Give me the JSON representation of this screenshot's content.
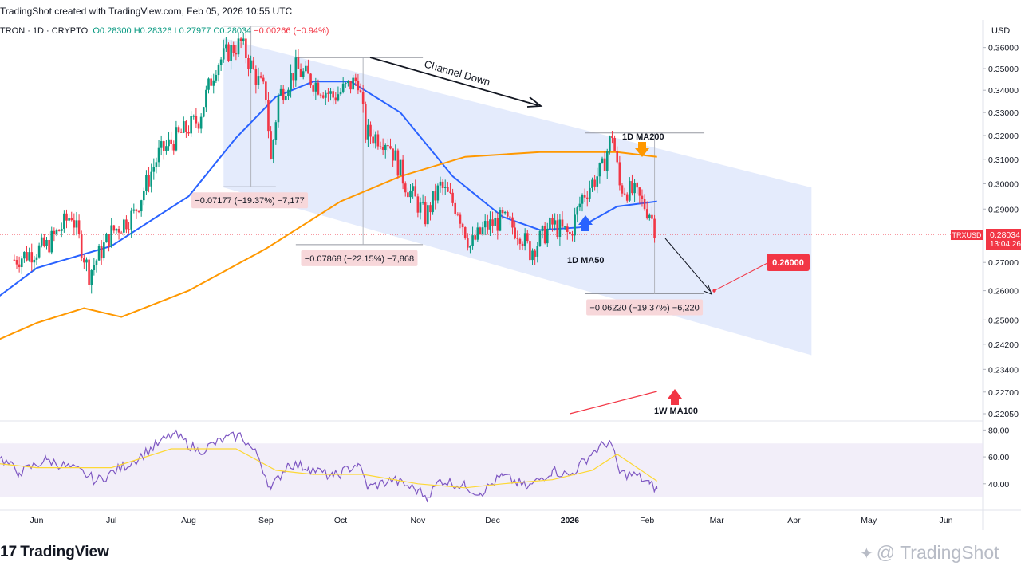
{
  "header": {
    "created_by": "TradingShot created with TradingView.com, Feb 05, 2026 10:55 UTC",
    "symbol": "TRON · 1D · CRYPTO",
    "open": "O0.28300",
    "high": "H0.28326",
    "low": "L0.27977",
    "close": "C0.28034",
    "change": "−0.00266 (−0.94%)"
  },
  "currency": "USD",
  "price_tag": {
    "ticker": "TRXUSD",
    "price": "0.28034",
    "countdown": "13:04:26"
  },
  "brand": {
    "left": "TradingView",
    "right": "@ TradingShot"
  },
  "colors": {
    "up": "#089981",
    "down": "#f23645",
    "ma50": "#2962ff",
    "ma200": "#ff9800",
    "channel": "#dbe4fb",
    "rsi": "#7e57c2",
    "rsi_ma": "#fdd835",
    "target": "#f23645"
  },
  "chart_data": [
    {
      "type": "candlestick",
      "title": "",
      "symbol": "TRXUSD",
      "y_axis_ticks": [
        "0.36000",
        "0.35000",
        "0.34000",
        "0.33000",
        "0.32000",
        "0.31000",
        "0.30000",
        "0.29000",
        "0.28000",
        "0.27000",
        "0.26000",
        "0.25000",
        "0.24200",
        "0.23400",
        "0.22700",
        "0.22050"
      ],
      "x_axis_ticks": [
        "Jun",
        "Jul",
        "Aug",
        "Sep",
        "Oct",
        "Nov",
        "Dec",
        "2026",
        "Feb",
        "Mar",
        "Apr",
        "May",
        "Jun"
      ],
      "ylim": [
        0.2205,
        0.3645
      ],
      "scale": "log",
      "grid": false,
      "price_anchors": [
        [
          "2025-05-23",
          0.271
        ],
        [
          "2025-06-05",
          0.276
        ],
        [
          "2025-06-15",
          0.288
        ],
        [
          "2025-06-22",
          0.266
        ],
        [
          "2025-07-01",
          0.281
        ],
        [
          "2025-07-10",
          0.288
        ],
        [
          "2025-07-20",
          0.312
        ],
        [
          "2025-07-28",
          0.32
        ],
        [
          "2025-08-05",
          0.327
        ],
        [
          "2025-08-12",
          0.352
        ],
        [
          "2025-08-17",
          0.358
        ],
        [
          "2025-08-22",
          0.362
        ],
        [
          "2025-08-28",
          0.346
        ],
        [
          "2025-09-01",
          0.338
        ],
        [
          "2025-09-03",
          0.309
        ],
        [
          "2025-09-06",
          0.337
        ],
        [
          "2025-09-13",
          0.35
        ],
        [
          "2025-09-20",
          0.344
        ],
        [
          "2025-09-28",
          0.337
        ],
        [
          "2025-10-08",
          0.345
        ],
        [
          "2025-10-11",
          0.321
        ],
        [
          "2025-10-20",
          0.318
        ],
        [
          "2025-10-27",
          0.3
        ],
        [
          "2025-11-04",
          0.287
        ],
        [
          "2025-11-10",
          0.299
        ],
        [
          "2025-11-17",
          0.29
        ],
        [
          "2025-11-22",
          0.276
        ],
        [
          "2025-11-28",
          0.283
        ],
        [
          "2025-12-05",
          0.286
        ],
        [
          "2025-12-12",
          0.281
        ],
        [
          "2025-12-16",
          0.274
        ],
        [
          "2025-12-25",
          0.284
        ],
        [
          "2026-01-01",
          0.28
        ],
        [
          "2026-01-06",
          0.295
        ],
        [
          "2026-01-14",
          0.306
        ],
        [
          "2026-01-18",
          0.321
        ],
        [
          "2026-01-21",
          0.299
        ],
        [
          "2026-01-27",
          0.296
        ],
        [
          "2026-02-02",
          0.289
        ],
        [
          "2026-02-05",
          0.2803
        ]
      ],
      "series": [
        {
          "name": "1D MA50",
          "points": [
            [
              "2025-05-01",
              0.248
            ],
            [
              "2025-06-01",
              0.268
            ],
            [
              "2025-07-01",
              0.276
            ],
            [
              "2025-08-01",
              0.295
            ],
            [
              "2025-08-20",
              0.319
            ],
            [
              "2025-09-05",
              0.337
            ],
            [
              "2025-09-20",
              0.344
            ],
            [
              "2025-10-05",
              0.344
            ],
            [
              "2025-10-25",
              0.33
            ],
            [
              "2025-11-15",
              0.303
            ],
            [
              "2025-12-05",
              0.287
            ],
            [
              "2025-12-20",
              0.282
            ],
            [
              "2026-01-05",
              0.283
            ],
            [
              "2026-01-20",
              0.291
            ],
            [
              "2026-02-05",
              0.293
            ]
          ]
        },
        {
          "name": "1D MA200",
          "points": [
            [
              "2025-05-01",
              0.238
            ],
            [
              "2025-06-01",
              0.249
            ],
            [
              "2025-06-20",
              0.254
            ],
            [
              "2025-07-05",
              0.251
            ],
            [
              "2025-08-01",
              0.26
            ],
            [
              "2025-09-01",
              0.275
            ],
            [
              "2025-10-01",
              0.293
            ],
            [
              "2025-10-25",
              0.303
            ],
            [
              "2025-11-20",
              0.311
            ],
            [
              "2025-12-20",
              0.313
            ],
            [
              "2026-01-20",
              0.313
            ],
            [
              "2026-02-05",
              0.311
            ]
          ]
        },
        {
          "name": "1W MA100",
          "points": [
            [
              "2026-01-01",
              0.2205
            ],
            [
              "2026-02-05",
              0.2272
            ]
          ]
        }
      ],
      "annotations": [
        {
          "text": "Channel Down"
        },
        {
          "text": "1D MA200"
        },
        {
          "text": "1D MA50"
        },
        {
          "text": "1W MA100"
        },
        {
          "text": "0.26000",
          "value": 0.26,
          "date": "2026-02-28"
        },
        {
          "text": "−0.07177 (−19.37%) −7,177",
          "from": 0.3705,
          "to": 0.2988
        },
        {
          "text": "−0.07868 (−22.15%) −7,868",
          "from": 0.3552,
          "to": 0.2765
        },
        {
          "text": "−0.06220 (−19.37%) −6,220",
          "from": 0.3211,
          "to": 0.2589
        }
      ],
      "channel": {
        "upper": [
          [
            "2025-08-15",
            0.3645
          ],
          [
            "2026-04-08",
            0.2985
          ]
        ],
        "lower": [
          [
            "2025-08-15",
            0.2985
          ],
          [
            "2026-04-08",
            0.2385
          ]
        ]
      }
    },
    {
      "type": "line",
      "title": "",
      "y_axis_ticks": [
        "80.00",
        "60.00",
        "40.00"
      ],
      "ylim": [
        28,
        82
      ],
      "band": [
        30,
        70
      ],
      "series": [
        {
          "name": "",
          "points": [
            [
              "2025-05-01",
              60
            ],
            [
              "2025-05-15",
              63
            ],
            [
              "2025-05-25",
              48
            ],
            [
              "2025-06-05",
              58
            ],
            [
              "2025-06-20",
              48
            ],
            [
              "2025-06-25",
              42
            ],
            [
              "2025-07-10",
              57
            ],
            [
              "2025-07-20",
              70
            ],
            [
              "2025-07-26",
              77
            ],
            [
              "2025-08-05",
              64
            ],
            [
              "2025-08-15",
              73
            ],
            [
              "2025-08-22",
              76
            ],
            [
              "2025-08-29",
              60
            ],
            [
              "2025-09-03",
              36
            ],
            [
              "2025-09-10",
              55
            ],
            [
              "2025-09-18",
              52
            ],
            [
              "2025-09-28",
              45
            ],
            [
              "2025-10-08",
              55
            ],
            [
              "2025-10-12",
              37
            ],
            [
              "2025-10-22",
              43
            ],
            [
              "2025-11-01",
              35
            ],
            [
              "2025-11-05",
              30
            ],
            [
              "2025-11-10",
              43
            ],
            [
              "2025-11-20",
              38
            ],
            [
              "2025-11-26",
              33
            ],
            [
              "2025-12-05",
              46
            ],
            [
              "2025-12-15",
              37
            ],
            [
              "2025-12-25",
              50
            ],
            [
              "2026-01-01",
              46
            ],
            [
              "2026-01-10",
              63
            ],
            [
              "2026-01-17",
              72
            ],
            [
              "2026-01-21",
              48
            ],
            [
              "2026-01-28",
              46
            ],
            [
              "2026-02-02",
              40
            ],
            [
              "2026-02-05",
              36
            ]
          ]
        },
        {
          "name": "",
          "points": [
            [
              "2025-05-01",
              58
            ],
            [
              "2025-06-01",
              52
            ],
            [
              "2025-07-01",
              52
            ],
            [
              "2025-07-25",
              66
            ],
            [
              "2025-08-20",
              66
            ],
            [
              "2025-09-05",
              50
            ],
            [
              "2025-09-20",
              47
            ],
            [
              "2025-10-10",
              47
            ],
            [
              "2025-11-01",
              40
            ],
            [
              "2025-11-20",
              37
            ],
            [
              "2025-12-05",
              40
            ],
            [
              "2025-12-25",
              43
            ],
            [
              "2026-01-10",
              50
            ],
            [
              "2026-01-20",
              62
            ],
            [
              "2026-02-05",
              42
            ]
          ]
        }
      ]
    }
  ]
}
